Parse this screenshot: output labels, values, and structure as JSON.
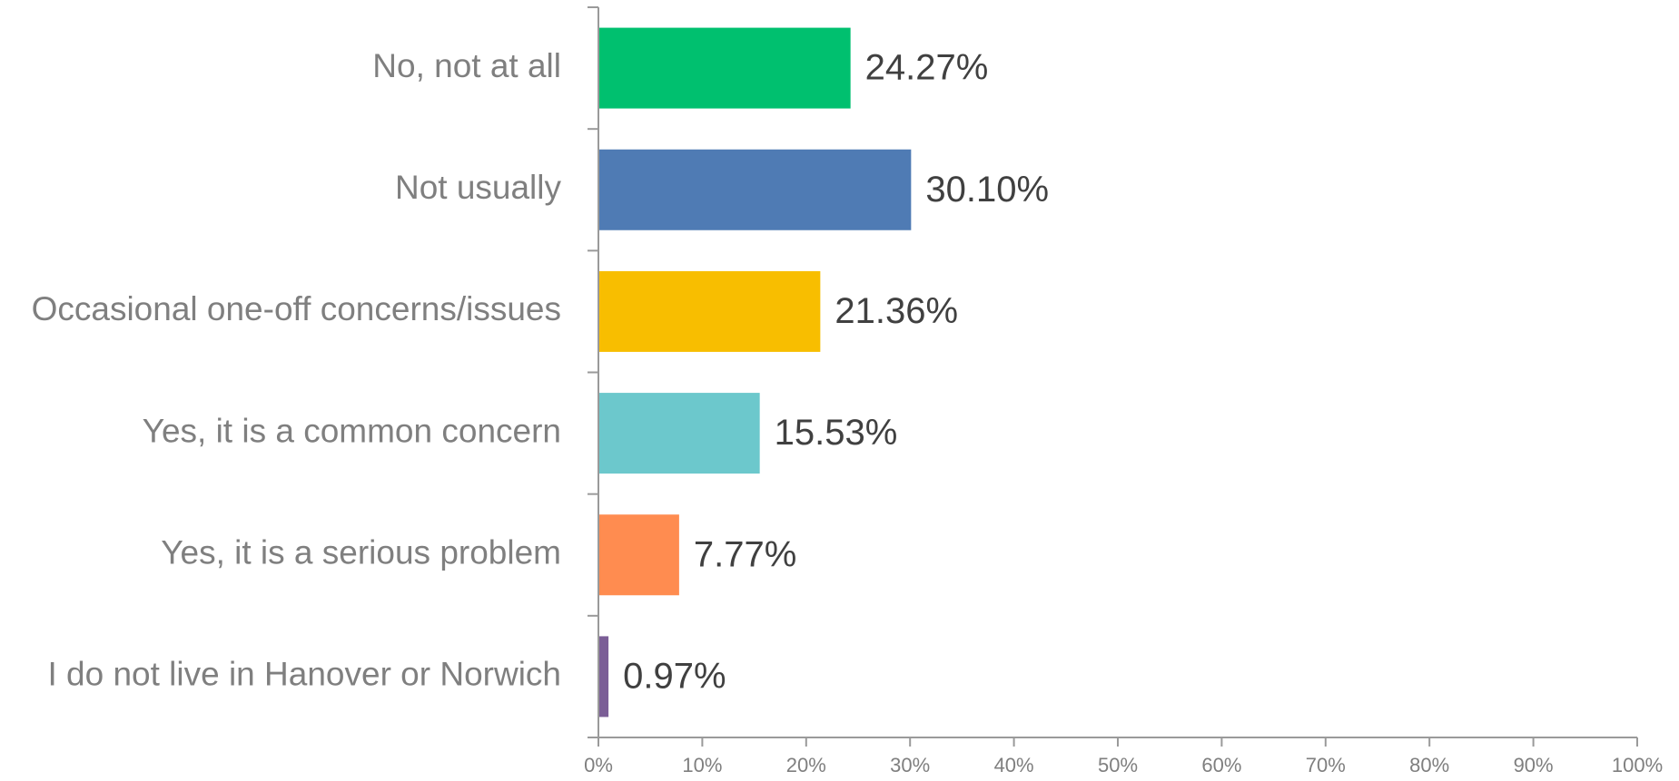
{
  "chart_data": {
    "type": "bar",
    "orientation": "horizontal",
    "title": "",
    "xlabel": "",
    "ylabel": "",
    "categories": [
      "No, not at all",
      "Not usually",
      "Occasional one-off concerns/issues",
      "Yes, it is a common concern",
      "Yes, it is a serious problem",
      "I do not live in Hanover or Norwich"
    ],
    "values": [
      24.27,
      30.1,
      21.36,
      15.53,
      7.77,
      0.97
    ],
    "value_labels": [
      "24.27%",
      "30.10%",
      "21.36%",
      "15.53%",
      "7.77%",
      "0.97%"
    ],
    "colors": [
      "#00c06f",
      "#4f7bb4",
      "#f8be00",
      "#6cc8cc",
      "#ff8c50",
      "#7b5e96"
    ],
    "xlim": [
      0,
      100
    ],
    "x_ticks": [
      0,
      10,
      20,
      30,
      40,
      50,
      60,
      70,
      80,
      90,
      100
    ],
    "x_tick_labels": [
      "0%",
      "10%",
      "20%",
      "30%",
      "40%",
      "50%",
      "60%",
      "70%",
      "80%",
      "90%",
      "100%"
    ],
    "grid": false,
    "legend": "none"
  }
}
